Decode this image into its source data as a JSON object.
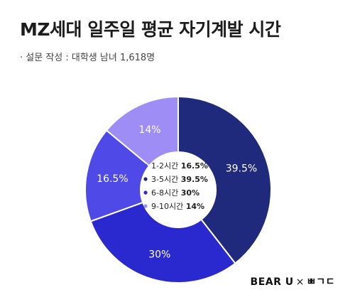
{
  "header": {
    "title": "MZ세대 일주일 평균 자기계발 시간",
    "subtitle": "· 설문 작성 : 대학생 남녀 1,618명"
  },
  "brand": {
    "left": "BEAR U",
    "separator": "×",
    "right": "ㅃㄱㄷ"
  },
  "chart_data": {
    "type": "pie",
    "variant": "donut",
    "title": "MZ세대 일주일 평균 자기계발 시간",
    "unit": "%",
    "slices": [
      {
        "label": "3-5시간",
        "value": 39.5,
        "display": "39.5%",
        "color": "#1f2a7c"
      },
      {
        "label": "6-8시간",
        "value": 30,
        "display": "30%",
        "color": "#2a28cf"
      },
      {
        "label": "1-2시간",
        "value": 16.5,
        "display": "16.5%",
        "color": "#4f49e8"
      },
      {
        "label": "9-10시간",
        "value": 14,
        "display": "14%",
        "color": "#9d8df4"
      }
    ],
    "legend": {
      "placement": "center",
      "items": [
        {
          "label": "1-2시간",
          "value": "16.5%",
          "color": "#4f49e8"
        },
        {
          "label": "3-5시간",
          "value": "39.5%",
          "color": "#1f2a7c"
        },
        {
          "label": "6-8시간",
          "value": "30%",
          "color": "#2a28cf"
        },
        {
          "label": "9-10시간",
          "value": "14%",
          "color": "#9d8df4"
        }
      ]
    }
  }
}
